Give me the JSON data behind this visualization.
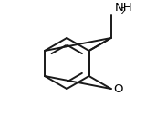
{
  "background_color": "#ffffff",
  "figsize": [
    1.82,
    1.38
  ],
  "dpi": 100,
  "line_width": 1.4,
  "bond_color": "#1a1a1a",
  "font_size": 9.5,
  "sub_font_size": 7.0
}
